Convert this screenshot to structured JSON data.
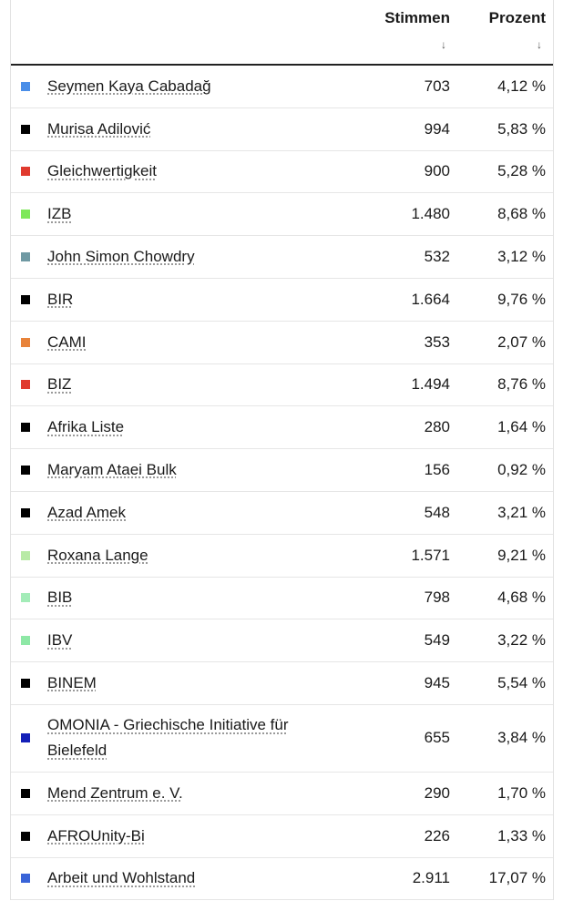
{
  "header": {
    "votes_label": "Stimmen",
    "percent_label": "Prozent",
    "sort_arrow": "↓"
  },
  "rows": [
    {
      "name": "Seymen Kaya Cabadağ",
      "votes": "703",
      "percent": "4,12 %",
      "color": "#4a8ee8"
    },
    {
      "name": "Murisa Adilović",
      "votes": "994",
      "percent": "5,83 %",
      "color": "#000000"
    },
    {
      "name": "Gleichwertigkeit",
      "votes": "900",
      "percent": "5,28 %",
      "color": "#e03a2e"
    },
    {
      "name": "IZB",
      "votes": "1.480",
      "percent": "8,68 %",
      "color": "#7ee85a"
    },
    {
      "name": "John Simon Chowdry",
      "votes": "532",
      "percent": "3,12 %",
      "color": "#6f99a3"
    },
    {
      "name": "BIR",
      "votes": "1.664",
      "percent": "9,76 %",
      "color": "#000000"
    },
    {
      "name": "CAMI",
      "votes": "353",
      "percent": "2,07 %",
      "color": "#e8833a"
    },
    {
      "name": "BIZ",
      "votes": "1.494",
      "percent": "8,76 %",
      "color": "#e03a2e"
    },
    {
      "name": "Afrika Liste",
      "votes": "280",
      "percent": "1,64 %",
      "color": "#000000"
    },
    {
      "name": "Maryam Ataei Bulk",
      "votes": "156",
      "percent": "0,92 %",
      "color": "#000000"
    },
    {
      "name": "Azad Amek",
      "votes": "548",
      "percent": "3,21 %",
      "color": "#000000"
    },
    {
      "name": "Roxana Lange",
      "votes": "1.571",
      "percent": "9,21 %",
      "color": "#b8eaa6"
    },
    {
      "name": "BIB",
      "votes": "798",
      "percent": "4,68 %",
      "color": "#a3ecb8"
    },
    {
      "name": "IBV",
      "votes": "549",
      "percent": "3,22 %",
      "color": "#8ee8a6"
    },
    {
      "name": "BINEM",
      "votes": "945",
      "percent": "5,54 %",
      "color": "#000000"
    },
    {
      "name": "OMONIA - Griechische Initiative für Bielefeld",
      "votes": "655",
      "percent": "3,84 %",
      "color": "#1420b8"
    },
    {
      "name": "Mend Zentrum e. V.",
      "votes": "290",
      "percent": "1,70 %",
      "color": "#000000"
    },
    {
      "name": "AFROUnity-Bi",
      "votes": "226",
      "percent": "1,33 %",
      "color": "#000000"
    },
    {
      "name": "Arbeit und Wohlstand",
      "votes": "2.911",
      "percent": "17,07 %",
      "color": "#3a64d8"
    }
  ]
}
